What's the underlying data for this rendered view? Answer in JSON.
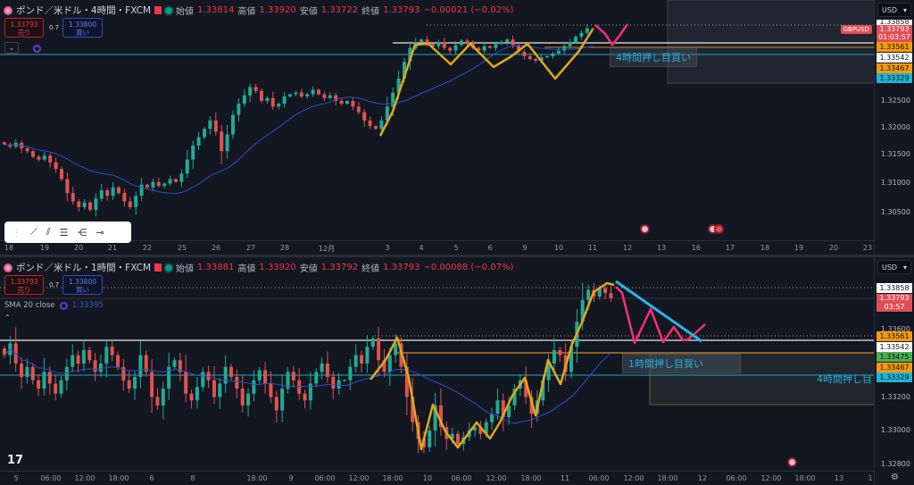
{
  "top": {
    "title": "ポンド／米ドル・4時間・FXCM",
    "ohlc": [
      {
        "label": "始値",
        "value": "1.33814"
      },
      {
        "label": "高値",
        "value": "1.33920"
      },
      {
        "label": "安値",
        "value": "1.33722"
      },
      {
        "label": "終値",
        "value": "1.33793"
      }
    ],
    "change": "−0.00021 (−0.02%)",
    "sell": {
      "price": "1.33793",
      "label": "売り"
    },
    "buy": {
      "price": "1.33800",
      "label": "買い"
    },
    "spread": "0.7",
    "currency": "USD",
    "symbol_tag": "GBPUSD",
    "price_tags": [
      {
        "value": "1.33858",
        "color": "#ffffff"
      },
      {
        "value": "1.33793",
        "sub": "01:03:57",
        "color": "#e04e55"
      },
      {
        "value": "1.33561",
        "color": "#f59a0b"
      },
      {
        "value": "1.33542",
        "color": "#ffffff"
      },
      {
        "value": "1.33467",
        "color": "#f59a0b"
      },
      {
        "value": "1.33329",
        "color": "#1fb5d4"
      }
    ],
    "price_labels": [
      "1.32500",
      "1.32000",
      "1.31500",
      "1.31000",
      "1.30500"
    ],
    "time_labels": [
      "18",
      "19",
      "20",
      "21",
      "22",
      "25",
      "26",
      "27",
      "28",
      "12月",
      "3",
      "4",
      "5",
      "6",
      "9",
      "10",
      "11",
      "12",
      "13",
      "16",
      "17",
      "18",
      "19",
      "20",
      "23"
    ],
    "note": "4時間押し目買い"
  },
  "bottom": {
    "title": "ポンド／米ドル・1時間・FXCM",
    "ohlc": [
      {
        "label": "始値",
        "value": "1.33881"
      },
      {
        "label": "高値",
        "value": "1.33920"
      },
      {
        "label": "安値",
        "value": "1.33792"
      },
      {
        "label": "終値",
        "value": "1.33793"
      }
    ],
    "change": "−0.00088 (−0.07%)",
    "sell": {
      "price": "1.33793",
      "label": "売り"
    },
    "buy": {
      "price": "1.33800",
      "label": "買い"
    },
    "spread": "0.7",
    "indicator": {
      "name": "SMA 20 close",
      "value": "1.33395"
    },
    "currency": "USD",
    "price_tags": [
      {
        "value": "1.33858",
        "color": "#ffffff"
      },
      {
        "value": "1.33793",
        "sub": "03:57",
        "color": "#e04e55"
      },
      {
        "value": "1.33561",
        "color": "#f59a0b"
      },
      {
        "value": "1.33542",
        "color": "#ffffff"
      },
      {
        "value": "1.33475",
        "color": "#4caf50"
      },
      {
        "value": "1.33467",
        "color": "#f59a0b"
      },
      {
        "value": "1.33329",
        "color": "#1fb5d4"
      }
    ],
    "price_labels": [
      "1.33600",
      "1.33200",
      "1.33000",
      "1.32800"
    ],
    "time_labels": [
      "5",
      "06:00",
      "12:00",
      "18:00",
      "6",
      "8",
      "18:00",
      "9",
      "06:00",
      "12:00",
      "18:00",
      "10",
      "06:00",
      "12:00",
      "18:00",
      "11",
      "06:00",
      "12:00",
      "18:00",
      "12",
      "06:00",
      "12:00",
      "18:00",
      "13",
      "1"
    ],
    "note_1h": "1時間押し目買い",
    "note_4h": "4時間押し目"
  },
  "colors": {
    "up": "#22ab94",
    "down": "#e0534f",
    "sma": "#2f4fc2",
    "zigzag": "#e0a81c",
    "forecast": "#ff2d78",
    "trendline": "#29b6e8",
    "background": "#131722"
  },
  "chart_data": [
    {
      "type": "candlestick",
      "title": "ポンド／米ドル・4時間・FXCM",
      "interval": "4h",
      "ylim": [
        1.302,
        1.339
      ],
      "closes": [
        1.3172,
        1.3168,
        1.3175,
        1.3165,
        1.316,
        1.315,
        1.3145,
        1.3152,
        1.314,
        1.3128,
        1.311,
        1.3085,
        1.307,
        1.306,
        1.3068,
        1.3055,
        1.3075,
        1.309,
        1.308,
        1.3095,
        1.3085,
        1.307,
        1.306,
        1.308,
        1.31,
        1.3095,
        1.3105,
        1.3098,
        1.3102,
        1.311,
        1.3105,
        1.312,
        1.3145,
        1.317,
        1.3185,
        1.32,
        1.3215,
        1.3195,
        1.316,
        1.319,
        1.3225,
        1.3245,
        1.326,
        1.3275,
        1.3268,
        1.325,
        1.3255,
        1.324,
        1.3245,
        1.3258,
        1.3262,
        1.3265,
        1.3258,
        1.3262,
        1.327,
        1.3262,
        1.3255,
        1.326,
        1.325,
        1.3245,
        1.325,
        1.324,
        1.323,
        1.3215,
        1.3205,
        1.32,
        1.3215,
        1.324,
        1.3265,
        1.329,
        1.332,
        1.3345,
        1.3355,
        1.336,
        1.3352,
        1.3348,
        1.3355,
        1.3345,
        1.334,
        1.335,
        1.3358,
        1.3352,
        1.3345,
        1.334,
        1.3348,
        1.3345,
        1.3352,
        1.3355,
        1.336,
        1.335,
        1.3338,
        1.333,
        1.3325,
        1.3322,
        1.3328,
        1.333,
        1.3335,
        1.334,
        1.3348,
        1.3355,
        1.3365,
        1.3372,
        1.338,
        1.3379
      ]
    },
    {
      "type": "candlestick",
      "title": "ポンド／米ドル・1時間・FXCM",
      "interval": "1h",
      "ylim": [
        1.3275,
        1.3395
      ],
      "closes": [
        1.3345,
        1.3352,
        1.334,
        1.3332,
        1.3338,
        1.333,
        1.3325,
        1.3335,
        1.3328,
        1.3322,
        1.333,
        1.3338,
        1.3345,
        1.334,
        1.3348,
        1.3342,
        1.3335,
        1.334,
        1.335,
        1.3345,
        1.3338,
        1.333,
        1.3325,
        1.3332,
        1.3345,
        1.3335,
        1.332,
        1.3315,
        1.3325,
        1.3338,
        1.3342,
        1.3335,
        1.3322,
        1.3318,
        1.3326,
        1.3335,
        1.333,
        1.332,
        1.3328,
        1.3338,
        1.3332,
        1.3325,
        1.3315,
        1.3322,
        1.333,
        1.3336,
        1.3328,
        1.332,
        1.3312,
        1.3325,
        1.3335,
        1.333,
        1.3322,
        1.3318,
        1.3328,
        1.3335,
        1.334,
        1.3332,
        1.3325,
        1.333,
        1.333,
        1.3338,
        1.3345,
        1.334,
        1.335,
        1.3355,
        1.3342,
        1.3335,
        1.3345,
        1.3352,
        1.3338,
        1.332,
        1.3305,
        1.3295,
        1.329,
        1.33,
        1.3315,
        1.3302,
        1.3295,
        1.3298,
        1.3292,
        1.3296,
        1.33,
        1.3302,
        1.3298,
        1.3305,
        1.331,
        1.3318,
        1.3308,
        1.3315,
        1.3325,
        1.333,
        1.332,
        1.331,
        1.3318,
        1.333,
        1.334,
        1.3348,
        1.3345,
        1.3335,
        1.335,
        1.3365,
        1.3378,
        1.3384,
        1.338,
        1.3385,
        1.3382,
        1.3379
      ]
    }
  ]
}
